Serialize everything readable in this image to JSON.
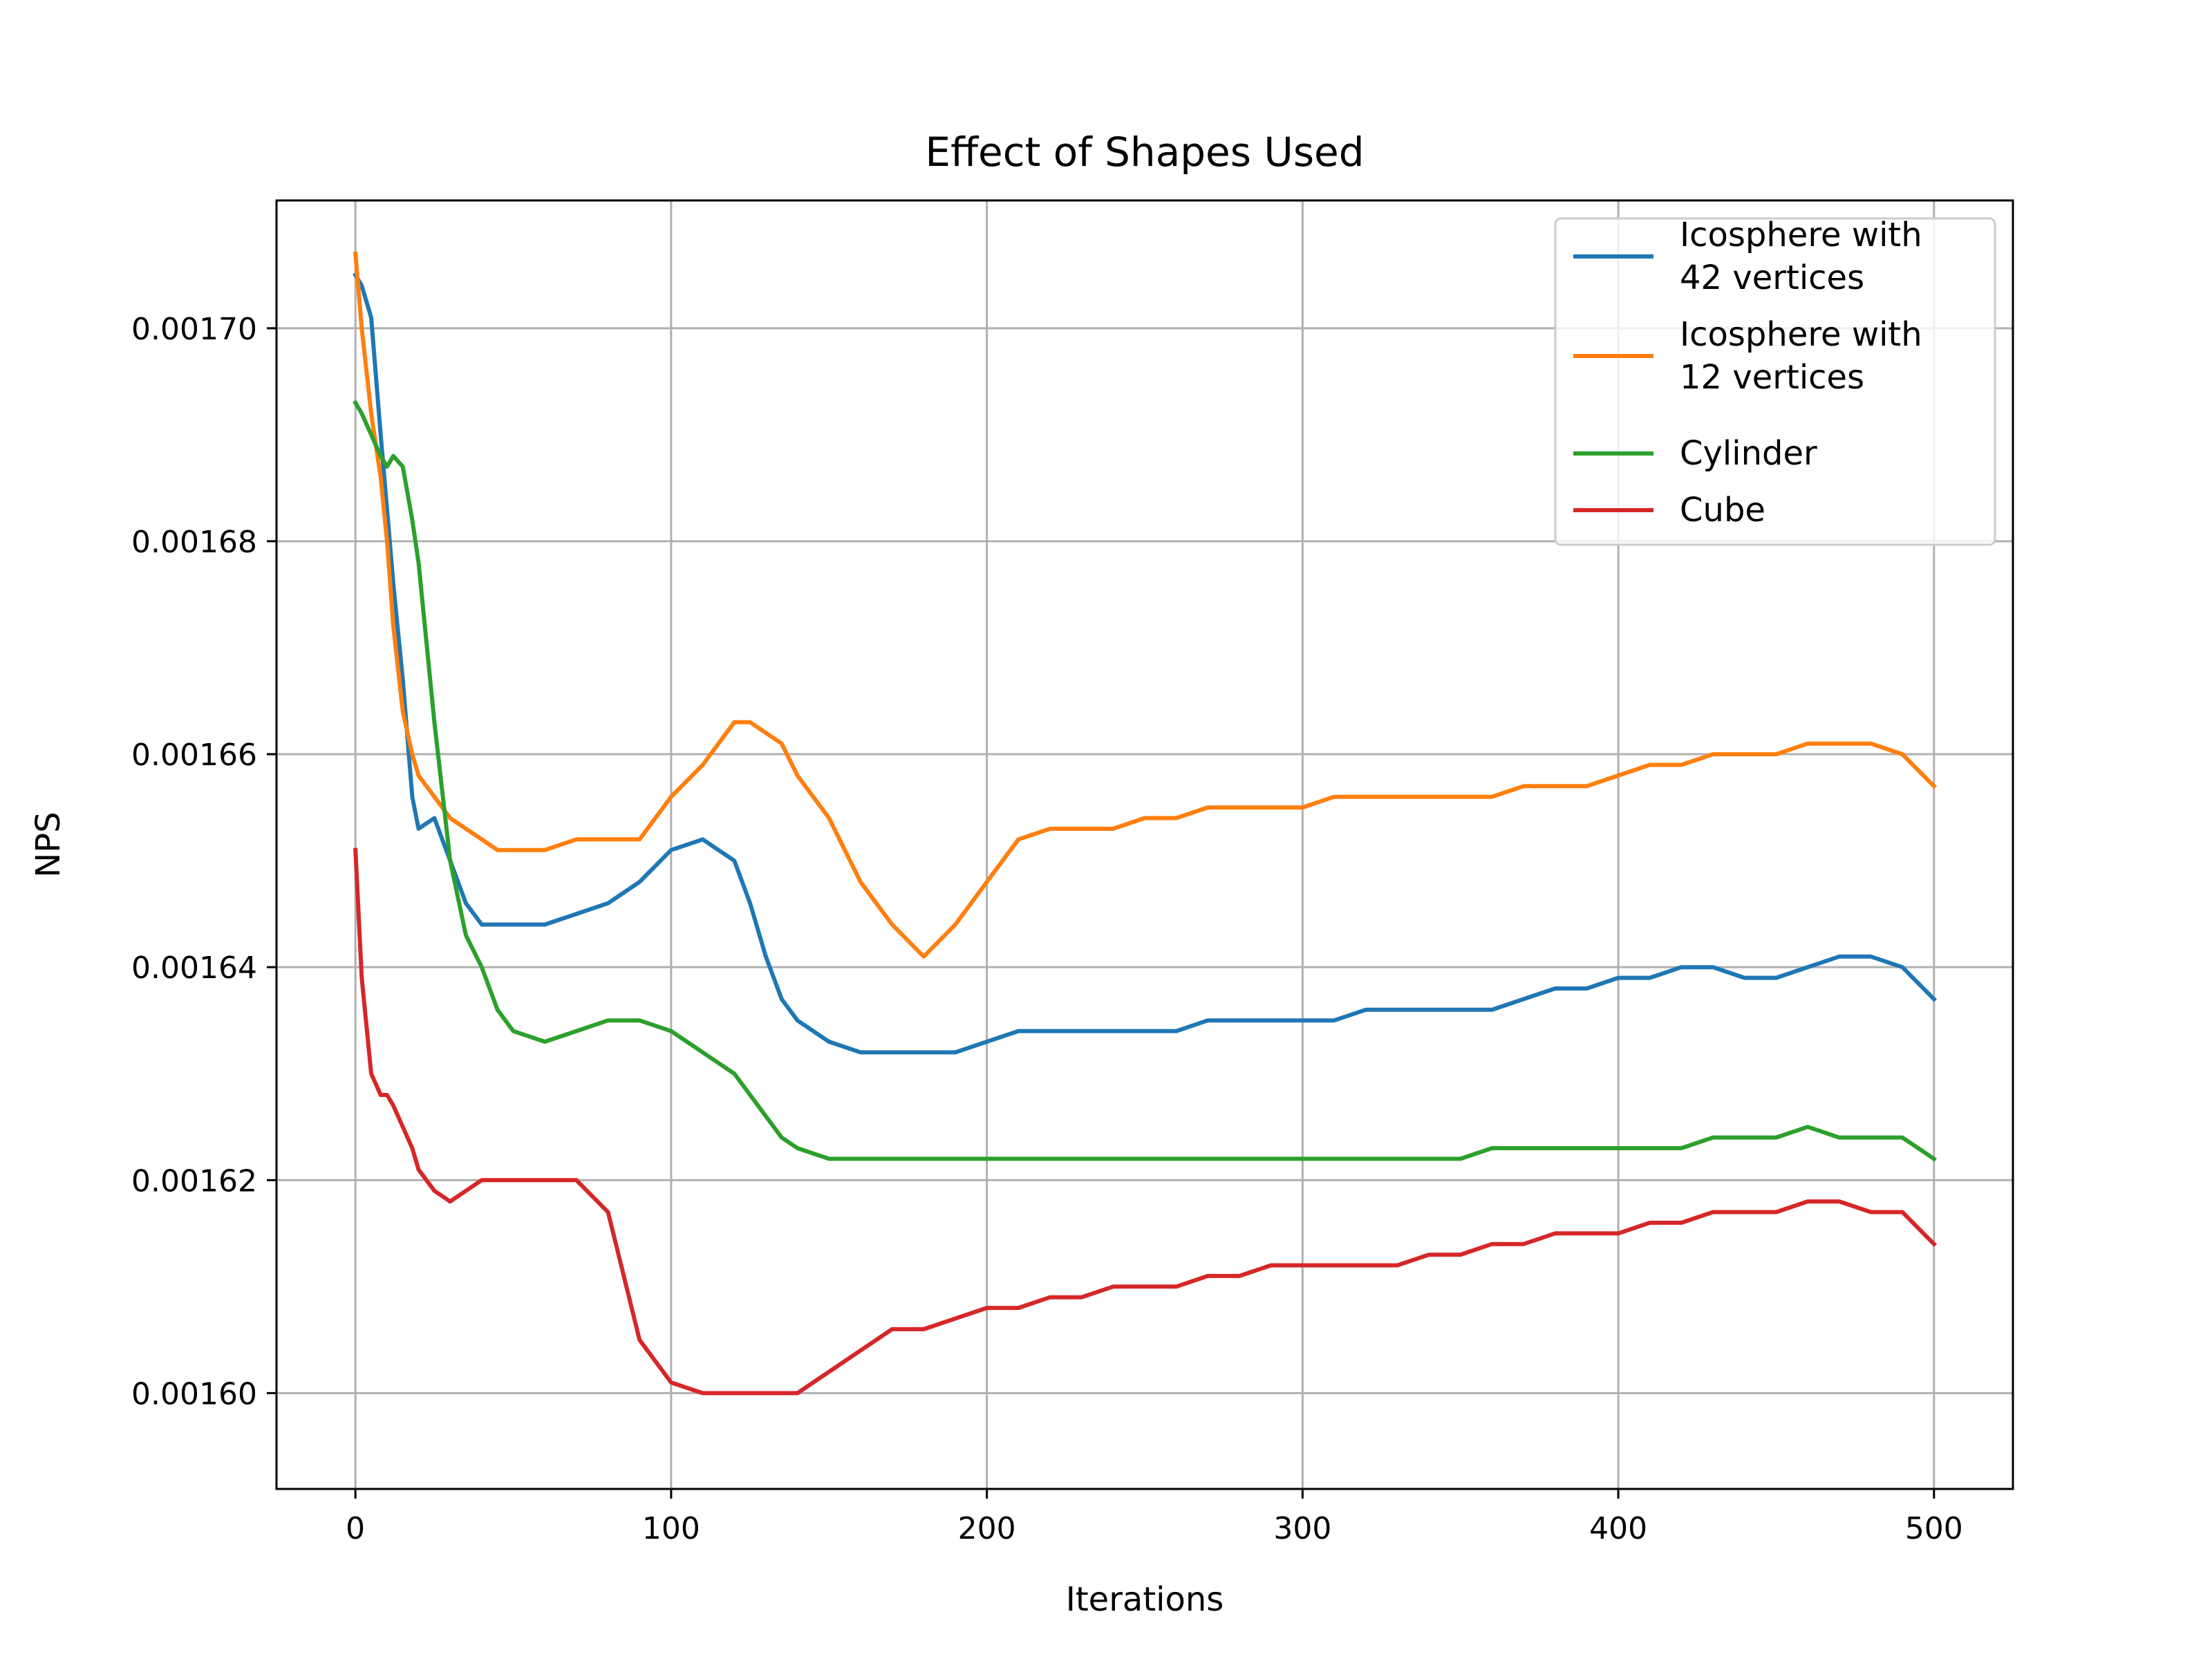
{
  "chart_data": {
    "type": "line",
    "title": "Effect of Shapes Used",
    "xlabel": "Iterations",
    "ylabel": "NPS",
    "xlim": [
      -25,
      525
    ],
    "ylim": [
      0.001591,
      0.001712
    ],
    "xticks": [
      0,
      100,
      200,
      300,
      400,
      500
    ],
    "xtick_labels": [
      "0",
      "100",
      "200",
      "300",
      "400",
      "500"
    ],
    "yticks": [
      0.0016,
      0.00162,
      0.00164,
      0.00166,
      0.00168,
      0.0017
    ],
    "ytick_labels": [
      "0.00160",
      "0.00162",
      "0.00164",
      "0.00166",
      "0.00168",
      "0.00170"
    ],
    "grid": true,
    "legend_position": "upper right",
    "x": [
      0,
      2,
      5,
      8,
      10,
      12,
      15,
      18,
      20,
      25,
      30,
      35,
      40,
      45,
      50,
      60,
      70,
      80,
      90,
      100,
      110,
      115,
      120,
      125,
      130,
      135,
      140,
      150,
      160,
      170,
      180,
      190,
      200,
      210,
      220,
      230,
      240,
      250,
      260,
      270,
      280,
      290,
      300,
      310,
      320,
      330,
      340,
      350,
      360,
      370,
      380,
      390,
      400,
      410,
      420,
      430,
      440,
      450,
      460,
      470,
      480,
      490,
      500
    ],
    "series": [
      {
        "name": "Icosphere with\n42 vertices",
        "color": "#1f77b4",
        "values": [
          0.001705,
          0.001704,
          0.001701,
          0.00169,
          0.001683,
          0.001676,
          0.001667,
          0.001656,
          0.001653,
          0.001654,
          0.00165,
          0.001646,
          0.001644,
          0.001644,
          0.001644,
          0.001644,
          0.001645,
          0.001646,
          0.001648,
          0.001651,
          0.001652,
          0.001651,
          0.00165,
          0.001646,
          0.001641,
          0.001637,
          0.001635,
          0.001633,
          0.001632,
          0.001632,
          0.001632,
          0.001632,
          0.001633,
          0.001634,
          0.001634,
          0.001634,
          0.001634,
          0.001634,
          0.001634,
          0.001635,
          0.001635,
          0.001635,
          0.001635,
          0.001635,
          0.001636,
          0.001636,
          0.001636,
          0.001636,
          0.001636,
          0.001637,
          0.001638,
          0.001638,
          0.001639,
          0.001639,
          0.00164,
          0.00164,
          0.001639,
          0.001639,
          0.00164,
          0.001641,
          0.001641,
          0.00164,
          0.001637
        ]
      },
      {
        "name": "Icosphere with\n12 vertices",
        "color": "#ff7f0e",
        "values": [
          0.001707,
          0.0017,
          0.001692,
          0.001686,
          0.00168,
          0.001672,
          0.001664,
          0.00166,
          0.001658,
          0.001656,
          0.001654,
          0.001653,
          0.001652,
          0.001651,
          0.001651,
          0.001651,
          0.001652,
          0.001652,
          0.001652,
          0.001656,
          0.001659,
          0.001661,
          0.001663,
          0.001663,
          0.001662,
          0.001661,
          0.001658,
          0.001654,
          0.001648,
          0.001644,
          0.001641,
          0.001644,
          0.001648,
          0.001652,
          0.001653,
          0.001653,
          0.001653,
          0.001654,
          0.001654,
          0.001655,
          0.001655,
          0.001655,
          0.001655,
          0.001656,
          0.001656,
          0.001656,
          0.001656,
          0.001656,
          0.001656,
          0.001657,
          0.001657,
          0.001657,
          0.001658,
          0.001659,
          0.001659,
          0.00166,
          0.00166,
          0.00166,
          0.001661,
          0.001661,
          0.001661,
          0.00166,
          0.001657
        ]
      },
      {
        "name": "Cylinder",
        "color": "#2ca02c",
        "values": [
          0.001693,
          0.001692,
          0.00169,
          0.001688,
          0.001687,
          0.001688,
          0.001687,
          0.001682,
          0.001678,
          0.001663,
          0.00165,
          0.001643,
          0.00164,
          0.001636,
          0.001634,
          0.001633,
          0.001634,
          0.001635,
          0.001635,
          0.001634,
          0.001632,
          0.001631,
          0.00163,
          0.001628,
          0.001626,
          0.001624,
          0.001623,
          0.001622,
          0.001622,
          0.001622,
          0.001622,
          0.001622,
          0.001622,
          0.001622,
          0.001622,
          0.001622,
          0.001622,
          0.001622,
          0.001622,
          0.001622,
          0.001622,
          0.001622,
          0.001622,
          0.001622,
          0.001622,
          0.001622,
          0.001622,
          0.001622,
          0.001623,
          0.001623,
          0.001623,
          0.001623,
          0.001623,
          0.001623,
          0.001623,
          0.001624,
          0.001624,
          0.001624,
          0.001625,
          0.001624,
          0.001624,
          0.001624,
          0.001622
        ]
      },
      {
        "name": "Cube",
        "color": "#d62728",
        "values": [
          0.001651,
          0.001639,
          0.00163,
          0.001628,
          0.001628,
          0.001627,
          0.001625,
          0.001623,
          0.001621,
          0.001619,
          0.001618,
          0.001619,
          0.00162,
          0.00162,
          0.00162,
          0.00162,
          0.00162,
          0.001617,
          0.001605,
          0.001601,
          0.0016,
          0.0016,
          0.0016,
          0.0016,
          0.0016,
          0.0016,
          0.0016,
          0.001602,
          0.001604,
          0.001606,
          0.001606,
          0.001607,
          0.001608,
          0.001608,
          0.001609,
          0.001609,
          0.00161,
          0.00161,
          0.00161,
          0.001611,
          0.001611,
          0.001612,
          0.001612,
          0.001612,
          0.001612,
          0.001612,
          0.001613,
          0.001613,
          0.001614,
          0.001614,
          0.001615,
          0.001615,
          0.001615,
          0.001616,
          0.001616,
          0.001617,
          0.001617,
          0.001617,
          0.001618,
          0.001618,
          0.001617,
          0.001617,
          0.001614
        ]
      }
    ]
  }
}
